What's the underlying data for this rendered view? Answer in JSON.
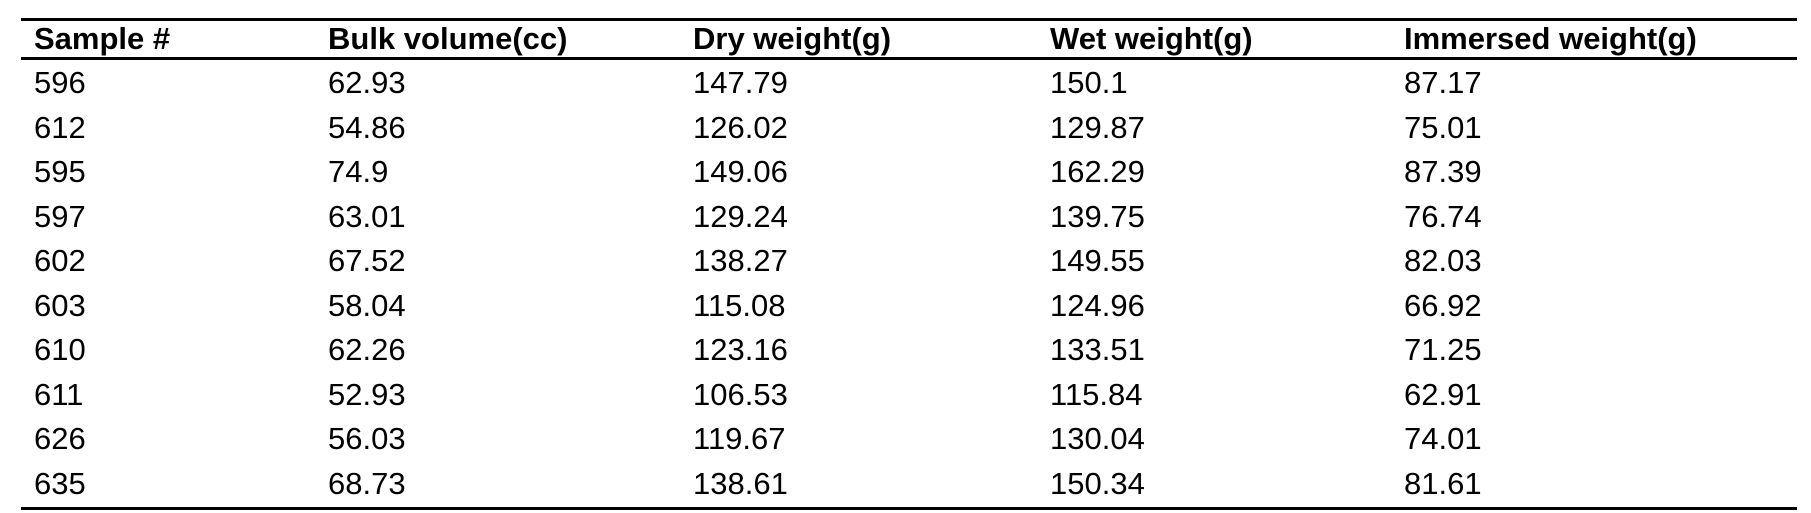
{
  "table": {
    "headers": [
      "Sample #",
      "Bulk volume(cc)",
      "Dry weight(g)",
      "Wet weight(g)",
      "Immersed weight(g)"
    ],
    "rows": [
      [
        "596",
        "62.93",
        "147.79",
        "150.1",
        "87.17"
      ],
      [
        "612",
        "54.86",
        "126.02",
        "129.87",
        "75.01"
      ],
      [
        "595",
        "74.9",
        "149.06",
        "162.29",
        "87.39"
      ],
      [
        "597",
        "63.01",
        "129.24",
        "139.75",
        "76.74"
      ],
      [
        "602",
        "67.52",
        "138.27",
        "149.55",
        "82.03"
      ],
      [
        "603",
        "58.04",
        "115.08",
        "124.96",
        "66.92"
      ],
      [
        "610",
        "62.26",
        "123.16",
        "133.51",
        "71.25"
      ],
      [
        "611",
        "52.93",
        "106.53",
        "115.84",
        "62.91"
      ],
      [
        "626",
        "56.03",
        "119.67",
        "130.04",
        "74.01"
      ],
      [
        "635",
        "68.73",
        "138.61",
        "150.34",
        "81.61"
      ]
    ]
  }
}
